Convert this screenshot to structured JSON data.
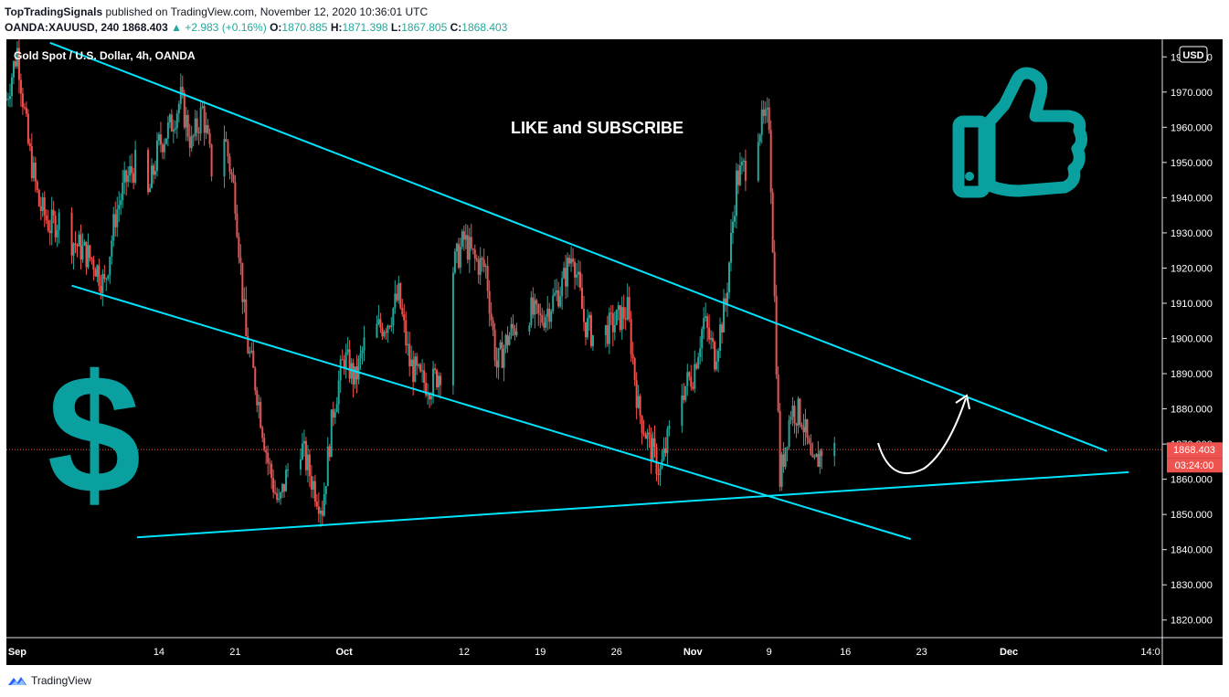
{
  "header": {
    "author": "TopTradingSignals",
    "published_text": "published on TradingView.com, November 12, 2020 10:36:01 UTC",
    "symbol": "OANDA:XAUUSD, 240",
    "last": "1868.403",
    "change": "▲ +2.983 (+0.16%)",
    "o_label": "O:",
    "o_val": "1870.885",
    "h_label": "H:",
    "h_val": "1871.398",
    "l_label": "L:",
    "l_val": "1867.805",
    "c_label": "C:",
    "c_val": "1868.403"
  },
  "legend_title": "Gold Spot / U.S. Dollar, 4h, OANDA",
  "annotation": "LIKE and SUBSCRIBE",
  "currency_badge": "USD",
  "price_label": "1868.403",
  "countdown_label": "03:24:00",
  "footer": {
    "brand": "TradingView"
  },
  "colors": {
    "up": "#26a69a",
    "down": "#ef5350",
    "trendline": "#00e5ff",
    "background": "#000000",
    "icons": "#0aa0a0",
    "price_line": "#ef5350"
  },
  "icons": [
    "thumbs-up-icon",
    "dollar-sign-icon",
    "curved-arrow-icon",
    "tradingview-logo-icon"
  ],
  "chart_data": {
    "type": "candlestick",
    "timeframe": "4h",
    "ylim": [
      1815,
      1985
    ],
    "yticks": [
      1820,
      1830,
      1840,
      1850,
      1860,
      1870,
      1880,
      1890,
      1900,
      1910,
      1920,
      1930,
      1940,
      1950,
      1960,
      1970,
      1980
    ],
    "ytick_labels": [
      "1820.000",
      "1830.000",
      "1840.000",
      "1850.000",
      "1860.000",
      "1870.000",
      "1880.000",
      "1890.000",
      "1900.000",
      "1910.000",
      "1920.000",
      "1930.000",
      "1940.000",
      "1950.000",
      "1960.000",
      "1970.000",
      "1980.000"
    ],
    "xlim": [
      "2020-08-31",
      "2020-12-15"
    ],
    "xticks": [
      {
        "date": "2020-09-01",
        "label": "Sep"
      },
      {
        "date": "2020-09-14",
        "label": "14"
      },
      {
        "date": "2020-09-21",
        "label": "21"
      },
      {
        "date": "2020-10-01",
        "label": "Oct"
      },
      {
        "date": "2020-10-12",
        "label": "12"
      },
      {
        "date": "2020-10-19",
        "label": "19"
      },
      {
        "date": "2020-10-26",
        "label": "26"
      },
      {
        "date": "2020-11-02",
        "label": "Nov"
      },
      {
        "date": "2020-11-09",
        "label": "9"
      },
      {
        "date": "2020-11-16",
        "label": "16"
      },
      {
        "date": "2020-11-23",
        "label": "23"
      },
      {
        "date": "2020-12-01",
        "label": "Dec"
      },
      {
        "date": "2020-12-14",
        "label": "14:0"
      }
    ],
    "last_price": 1868.403,
    "trendlines": [
      {
        "name": "upper",
        "from": [
          "2020-09-04",
          1984
        ],
        "to": [
          "2020-12-10",
          1868
        ]
      },
      {
        "name": "lower",
        "from": [
          "2020-09-06",
          1915
        ],
        "to": [
          "2020-11-22",
          1843
        ]
      },
      {
        "name": "support",
        "from": [
          "2020-09-12",
          1843.5
        ],
        "to": [
          "2020-12-12",
          1862
        ]
      }
    ],
    "price_path": [
      [
        "2020-08-31",
        1968
      ],
      [
        "2020-09-01",
        1982
      ],
      [
        "2020-09-02",
        1955
      ],
      [
        "2020-09-03",
        1938
      ],
      [
        "2020-09-04",
        1932
      ],
      [
        "2020-09-05",
        1934
      ],
      [
        "2020-09-06",
        1928
      ],
      [
        "2020-09-08",
        1922
      ],
      [
        "2020-09-09",
        1915
      ],
      [
        "2020-09-10",
        1935
      ],
      [
        "2020-09-11",
        1945
      ],
      [
        "2020-09-12",
        1950
      ],
      [
        "2020-09-13",
        1940
      ],
      [
        "2020-09-14",
        1955
      ],
      [
        "2020-09-15",
        1960
      ],
      [
        "2020-09-16",
        1968
      ],
      [
        "2020-09-17",
        1955
      ],
      [
        "2020-09-18",
        1965
      ],
      [
        "2020-09-19",
        1945
      ],
      [
        "2020-09-20",
        1958
      ],
      [
        "2020-09-21",
        1940
      ],
      [
        "2020-09-22",
        1900
      ],
      [
        "2020-09-23",
        1885
      ],
      [
        "2020-09-24",
        1865
      ],
      [
        "2020-09-25",
        1852
      ],
      [
        "2020-09-26",
        1865
      ],
      [
        "2020-09-27",
        1870
      ],
      [
        "2020-09-28",
        1860
      ],
      [
        "2020-09-29",
        1852
      ],
      [
        "2020-09-30",
        1880
      ],
      [
        "2020-10-01",
        1895
      ],
      [
        "2020-10-02",
        1888
      ],
      [
        "2020-10-03",
        1900
      ],
      [
        "2020-10-05",
        1905
      ],
      [
        "2020-10-06",
        1912
      ],
      [
        "2020-10-07",
        1893
      ],
      [
        "2020-10-08",
        1888
      ],
      [
        "2020-10-09",
        1887
      ],
      [
        "2020-10-10",
        1892
      ],
      [
        "2020-10-11",
        1920
      ],
      [
        "2020-10-12",
        1928
      ],
      [
        "2020-10-13",
        1922
      ],
      [
        "2020-10-14",
        1920
      ],
      [
        "2020-10-15",
        1892
      ],
      [
        "2020-10-16",
        1900
      ],
      [
        "2020-10-17",
        1905
      ],
      [
        "2020-10-18",
        1908
      ],
      [
        "2020-10-19",
        1905
      ],
      [
        "2020-10-20",
        1910
      ],
      [
        "2020-10-21",
        1915
      ],
      [
        "2020-10-22",
        1925
      ],
      [
        "2020-10-23",
        1905
      ],
      [
        "2020-10-24",
        1900
      ],
      [
        "2020-10-25",
        1902
      ],
      [
        "2020-10-26",
        1905
      ],
      [
        "2020-10-27",
        1908
      ],
      [
        "2020-10-28",
        1880
      ],
      [
        "2020-10-29",
        1870
      ],
      [
        "2020-10-30",
        1862
      ],
      [
        "2020-10-31",
        1875
      ],
      [
        "2020-11-01",
        1885
      ],
      [
        "2020-11-02",
        1890
      ],
      [
        "2020-11-03",
        1905
      ],
      [
        "2020-11-04",
        1895
      ],
      [
        "2020-11-05",
        1910
      ],
      [
        "2020-11-06",
        1945
      ],
      [
        "2020-11-07",
        1950
      ],
      [
        "2020-11-08",
        1960
      ],
      [
        "2020-11-09",
        1962
      ],
      [
        "2020-11-10",
        1860
      ],
      [
        "2020-11-11",
        1880
      ],
      [
        "2020-11-12",
        1878
      ],
      [
        "2020-11-13",
        1862
      ],
      [
        "2020-11-14",
        1870
      ],
      [
        "2020-11-15",
        1868.403
      ]
    ]
  }
}
